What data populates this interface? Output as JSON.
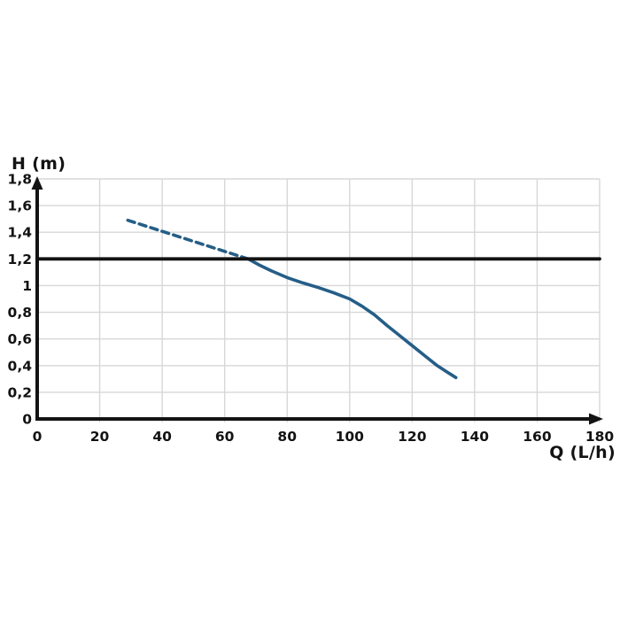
{
  "chart_data": {
    "type": "line",
    "title": "",
    "xlabel": "Q (L/h)",
    "ylabel": "H (m)",
    "xlim": [
      0,
      180
    ],
    "ylim": [
      0,
      1.8
    ],
    "x_tick_step": 20,
    "y_tick_step": 0.2,
    "x_tick_labels": [
      "0",
      "20",
      "40",
      "60",
      "80",
      "100",
      "120",
      "140",
      "160",
      "180"
    ],
    "y_tick_labels": [
      "0",
      "0,2",
      "0,4",
      "0,6",
      "0,8",
      "1",
      "1,2",
      "1,4",
      "1,6",
      "1,8"
    ],
    "grid": true,
    "legend": "none",
    "decimal_separator": ",",
    "colors": {
      "grid": "#d7d7d7",
      "axis": "#131313",
      "text": "#131313",
      "curve": "#255e87",
      "reference": "#131313",
      "background": "#ffffff"
    },
    "series": [
      {
        "name": "pump-curve-dashed-extension",
        "style": "dashed",
        "color": "#255e87",
        "width": 3.6,
        "dash": "8 5.5",
        "points": [
          [
            29,
            1.49
          ],
          [
            67.5,
            1.2
          ]
        ]
      },
      {
        "name": "pump-curve",
        "style": "solid",
        "color": "#255e87",
        "width": 3.6,
        "points": [
          [
            67.5,
            1.2
          ],
          [
            71,
            1.155
          ],
          [
            75,
            1.11
          ],
          [
            80,
            1.06
          ],
          [
            85,
            1.02
          ],
          [
            90,
            0.985
          ],
          [
            95,
            0.945
          ],
          [
            100,
            0.9
          ],
          [
            104,
            0.845
          ],
          [
            108,
            0.78
          ],
          [
            112,
            0.7
          ],
          [
            116,
            0.625
          ],
          [
            120,
            0.55
          ],
          [
            124,
            0.475
          ],
          [
            128,
            0.4
          ],
          [
            131,
            0.355
          ],
          [
            134,
            0.31
          ]
        ]
      },
      {
        "name": "max-head-reference-line",
        "style": "solid",
        "color": "#131313",
        "width": 3.8,
        "points": [
          [
            0,
            1.2
          ],
          [
            180,
            1.2
          ]
        ]
      }
    ]
  }
}
